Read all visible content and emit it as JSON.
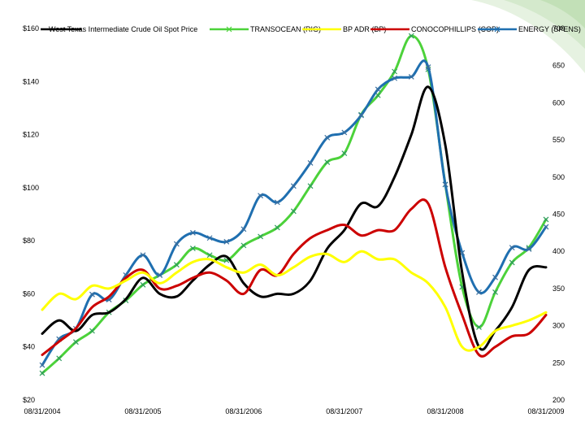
{
  "chart_data": {
    "type": "line",
    "title": "",
    "xlabel": "",
    "ylabel": "",
    "x": [
      "08/31/2004",
      "10/31/2004",
      "12/31/2004",
      "02/28/2005",
      "04/30/2005",
      "06/30/2005",
      "08/31/2005",
      "10/31/2005",
      "12/31/2005",
      "02/28/2006",
      "04/30/2006",
      "06/30/2006",
      "08/31/2006",
      "10/31/2006",
      "12/31/2006",
      "02/28/2007",
      "04/30/2007",
      "06/30/2007",
      "08/31/2007",
      "10/31/2007",
      "12/31/2007",
      "02/29/2008",
      "04/30/2008",
      "06/30/2008",
      "08/31/2008",
      "10/31/2008",
      "12/31/2008",
      "02/28/2009",
      "04/30/2009",
      "06/30/2009",
      "08/31/2009"
    ],
    "x_ticks": [
      "08/31/2004",
      "08/31/2005",
      "08/31/2006",
      "08/31/2007",
      "08/31/2008",
      "08/31/2009"
    ],
    "y_left": {
      "ylim": [
        20,
        160
      ],
      "ticks": [
        "$20",
        "$40",
        "$60",
        "$80",
        "$100",
        "$120",
        "$140",
        "$160"
      ]
    },
    "y_right": {
      "ylim": [
        200,
        700
      ],
      "ticks": [
        "200",
        "250",
        "300",
        "350",
        "400",
        "450",
        "500",
        "550",
        "600",
        "650",
        "700"
      ]
    },
    "legend_placement": "top",
    "series": [
      {
        "name": "West Texas Intermediate Crude Oil Spot Price",
        "axis": "left",
        "color": "#000000",
        "marker": "none",
        "values": [
          45,
          50,
          46,
          52,
          53,
          58,
          66,
          60,
          59,
          65,
          71,
          74,
          64,
          59,
          60,
          60,
          65,
          77,
          84,
          94,
          93,
          104,
          120,
          138,
          116,
          68,
          40,
          46,
          55,
          69,
          70
        ]
      },
      {
        "name": "TRANSOCEAN (RIG)",
        "axis": "right",
        "color": "#4cd23a",
        "marker": "x",
        "values": [
          236,
          256,
          278,
          293,
          318,
          334,
          355,
          368,
          382,
          404,
          395,
          388,
          408,
          420,
          432,
          454,
          488,
          520,
          532,
          584,
          610,
          642,
          690,
          645,
          490,
          352,
          298,
          345,
          385,
          405,
          443
        ]
      },
      {
        "name": "BP ADR (BP)",
        "axis": "left",
        "color": "#ffff00",
        "marker": "none",
        "values": [
          54,
          60,
          58,
          63,
          62,
          65,
          68,
          64,
          68,
          72,
          73,
          70,
          68,
          71,
          67,
          70,
          74,
          75,
          72,
          76,
          73,
          73,
          68,
          64,
          55,
          40,
          40,
          46,
          48,
          50,
          53
        ]
      },
      {
        "name": "CONOCOPHILLIPS (COP)",
        "axis": "left",
        "color": "#cc0000",
        "marker": "none",
        "values": [
          37,
          42,
          47,
          55,
          59,
          66,
          69,
          62,
          63,
          66,
          68,
          65,
          60,
          69,
          67,
          75,
          81,
          84,
          86,
          82,
          84,
          84,
          92,
          94,
          70,
          52,
          37,
          40,
          44,
          45,
          52
        ]
      },
      {
        "name": "ENERGY (SPENS)",
        "axis": "right",
        "color": "#1f6fb0",
        "marker": "x",
        "values": [
          247,
          282,
          296,
          342,
          335,
          368,
          395,
          368,
          410,
          425,
          418,
          413,
          430,
          475,
          466,
          488,
          519,
          553,
          560,
          583,
          618,
          633,
          635,
          648,
          490,
          398,
          345,
          365,
          405,
          403,
          433
        ]
      }
    ]
  }
}
